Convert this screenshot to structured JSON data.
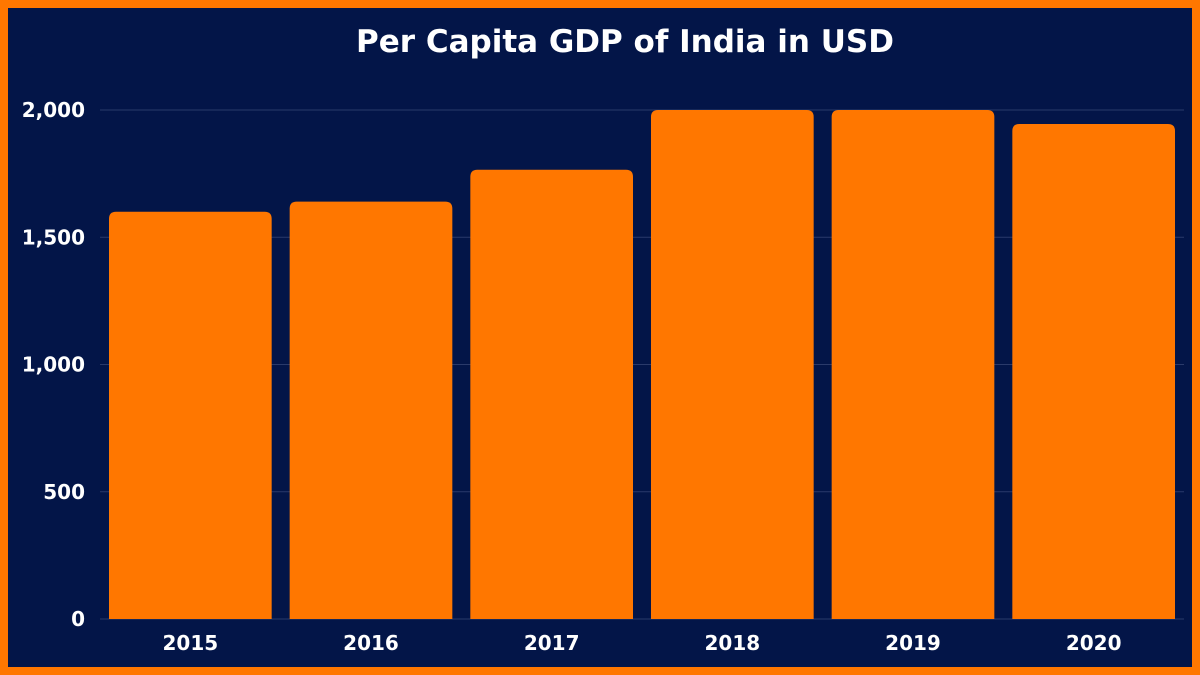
{
  "colors": {
    "border": "#FF7700",
    "background": "#031548",
    "bar": "#FF7700",
    "grid": "#2A3A6A",
    "text": "#FFFFFF"
  },
  "chart_data": {
    "type": "bar",
    "title": "Per Capita GDP of India in USD",
    "xlabel": "",
    "ylabel": "",
    "categories": [
      "2015",
      "2016",
      "2017",
      "2018",
      "2019",
      "2020"
    ],
    "values": [
      1600,
      1640,
      1765,
      2000,
      2000,
      1945
    ],
    "ylim": [
      0,
      2000
    ],
    "yticks": [
      0,
      500,
      1000,
      1500,
      2000
    ],
    "ytick_labels": [
      "0",
      "500",
      "1,000",
      "1,500",
      "2,000"
    ],
    "grid": true,
    "legend": "none"
  }
}
